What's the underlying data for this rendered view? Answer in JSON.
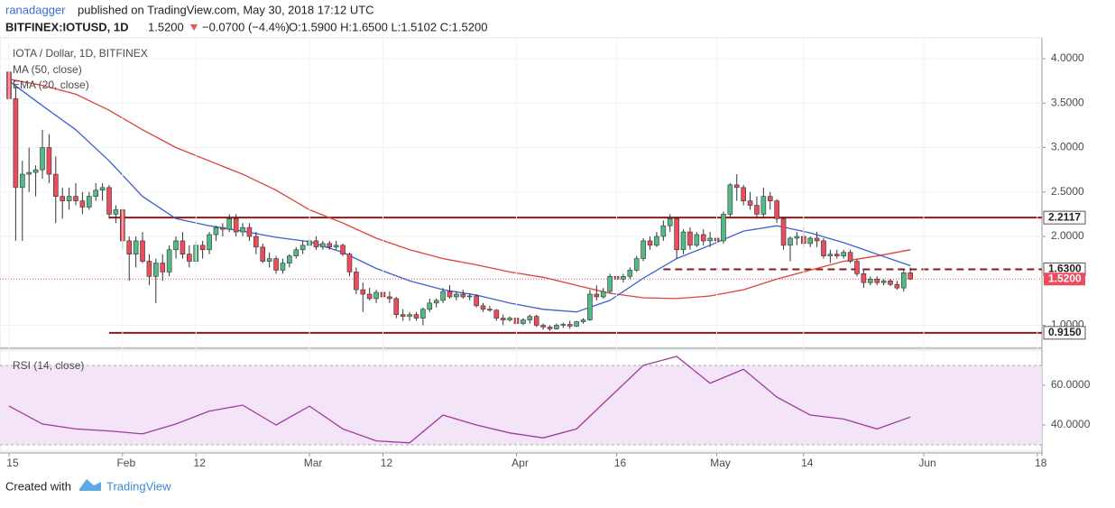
{
  "header": {
    "publisher": "ranadagger",
    "published": "published on TradingView.com, May 30, 2018 17:12 UTC",
    "symbol": "BITFINEX:IOTUSD, 1D",
    "last": "1.5200",
    "change": "−0.0700 (−4.4%)",
    "ohlc": "O:1.5900 H:1.6500 L:1.5102 C:1.5200"
  },
  "footer": {
    "created": "Created with",
    "brand": "TradingView"
  },
  "chart_data": [
    {
      "type": "candlestick",
      "title": "IOTA / Dollar, 1D, BITFINEX",
      "up_color": "#53b987",
      "down_color": "#eb4d5c",
      "xlim": [
        -1.35,
        154.7
      ],
      "ylim": [
        0.751,
        4.234
      ],
      "xticks": [
        {
          "value": 0,
          "label": "15"
        },
        {
          "value": 17,
          "label": "Feb"
        },
        {
          "value": 28,
          "label": "12"
        },
        {
          "value": 45,
          "label": "Mar"
        },
        {
          "value": 56,
          "label": "12"
        },
        {
          "value": 76,
          "label": "Apr"
        },
        {
          "value": 91,
          "label": "16"
        },
        {
          "value": 106,
          "label": "May"
        },
        {
          "value": 119,
          "label": "14"
        },
        {
          "value": 137,
          "label": "Jun"
        },
        {
          "value": 154,
          "label": "18"
        }
      ],
      "yticks": [
        {
          "value": 4,
          "label": "4.0000"
        },
        {
          "value": 3.5,
          "label": "3.5000"
        },
        {
          "value": 3,
          "label": "3.0000"
        },
        {
          "value": 2.5,
          "label": "2.5000"
        },
        {
          "value": 2,
          "label": "2.0000"
        },
        {
          "value": 1,
          "label": "1.0000"
        }
      ],
      "levels": [
        {
          "value": 2.2117,
          "label": "2.2117"
        },
        {
          "value": 1.63,
          "label": "1.6300"
        },
        {
          "value": 0.915,
          "label": "0.9150"
        }
      ],
      "last_price": {
        "value": 1.52,
        "label": "1.5200"
      },
      "candles": [
        [
          3.85,
          3.95,
          3.4,
          3.55
        ],
        [
          3.55,
          3.7,
          1.95,
          2.55
        ],
        [
          2.55,
          2.85,
          1.95,
          2.7
        ],
        [
          2.7,
          3,
          2.5,
          2.72
        ],
        [
          2.72,
          2.8,
          2.45,
          2.75
        ],
        [
          2.75,
          3.2,
          2.65,
          3
        ],
        [
          3,
          3.15,
          2.6,
          2.7
        ],
        [
          2.7,
          2.9,
          2.15,
          2.45
        ],
        [
          2.45,
          2.55,
          2.2,
          2.4
        ],
        [
          2.4,
          2.55,
          2.3,
          2.45
        ],
        [
          2.45,
          2.6,
          2.35,
          2.4
        ],
        [
          2.4,
          2.5,
          2.25,
          2.33
        ],
        [
          2.33,
          2.5,
          2.3,
          2.45
        ],
        [
          2.45,
          2.6,
          2.4,
          2.52
        ],
        [
          2.52,
          2.6,
          2.4,
          2.55
        ],
        [
          2.55,
          2.58,
          2.2,
          2.25
        ],
        [
          2.25,
          2.35,
          2.15,
          2.3
        ],
        [
          2.3,
          2.32,
          1.85,
          1.95
        ],
        [
          1.95,
          2,
          1.5,
          1.8
        ],
        [
          1.8,
          2,
          1.65,
          1.95
        ],
        [
          1.95,
          2.05,
          1.7,
          1.72
        ],
        [
          1.72,
          1.8,
          1.45,
          1.55
        ],
        [
          1.55,
          1.75,
          1.25,
          1.7
        ],
        [
          1.7,
          1.8,
          1.5,
          1.6
        ],
        [
          1.6,
          1.9,
          1.55,
          1.85
        ],
        [
          1.85,
          2,
          1.75,
          1.95
        ],
        [
          1.95,
          2.05,
          1.75,
          1.8
        ],
        [
          1.8,
          1.9,
          1.65,
          1.72
        ],
        [
          1.72,
          1.95,
          1.7,
          1.9
        ],
        [
          1.9,
          1.95,
          1.75,
          1.85
        ],
        [
          1.85,
          2.05,
          1.8,
          2.02
        ],
        [
          2.02,
          2.12,
          1.95,
          2.1
        ],
        [
          2.1,
          2.15,
          2,
          2.08
        ],
        [
          2.08,
          2.25,
          2.05,
          2.2
        ],
        [
          2.2,
          2.25,
          2,
          2.05
        ],
        [
          2.05,
          2.15,
          2,
          2.1
        ],
        [
          2.1,
          2.15,
          1.95,
          2
        ],
        [
          2,
          2.05,
          1.8,
          1.88
        ],
        [
          1.88,
          1.92,
          1.7,
          1.72
        ],
        [
          1.72,
          1.82,
          1.65,
          1.75
        ],
        [
          1.75,
          1.78,
          1.58,
          1.62
        ],
        [
          1.62,
          1.75,
          1.58,
          1.7
        ],
        [
          1.7,
          1.8,
          1.65,
          1.78
        ],
        [
          1.78,
          1.88,
          1.75,
          1.85
        ],
        [
          1.85,
          1.95,
          1.8,
          1.9
        ],
        [
          1.9,
          2,
          1.85,
          1.95
        ],
        [
          1.95,
          2,
          1.85,
          1.88
        ],
        [
          1.88,
          1.95,
          1.85,
          1.92
        ],
        [
          1.92,
          1.95,
          1.85,
          1.88
        ],
        [
          1.88,
          1.95,
          1.85,
          1.9
        ],
        [
          1.9,
          1.92,
          1.78,
          1.8
        ],
        [
          1.8,
          1.82,
          1.55,
          1.6
        ],
        [
          1.6,
          1.65,
          1.35,
          1.4
        ],
        [
          1.4,
          1.48,
          1.15,
          1.35
        ],
        [
          1.35,
          1.42,
          1.28,
          1.3
        ],
        [
          1.3,
          1.4,
          1.25,
          1.37
        ],
        [
          1.37,
          1.4,
          1.28,
          1.32
        ],
        [
          1.32,
          1.38,
          1.25,
          1.3
        ],
        [
          1.3,
          1.32,
          1.08,
          1.12
        ],
        [
          1.12,
          1.18,
          1.05,
          1.1
        ],
        [
          1.1,
          1.15,
          1.05,
          1.12
        ],
        [
          1.12,
          1.15,
          1.05,
          1.08
        ],
        [
          1.08,
          1.2,
          1,
          1.18
        ],
        [
          1.18,
          1.3,
          1.15,
          1.25
        ],
        [
          1.25,
          1.3,
          1.2,
          1.28
        ],
        [
          1.28,
          1.42,
          1.25,
          1.38
        ],
        [
          1.38,
          1.45,
          1.3,
          1.32
        ],
        [
          1.32,
          1.38,
          1.28,
          1.35
        ],
        [
          1.35,
          1.4,
          1.3,
          1.32
        ],
        [
          1.32,
          1.36,
          1.28,
          1.33
        ],
        [
          1.33,
          1.35,
          1.2,
          1.22
        ],
        [
          1.22,
          1.25,
          1.15,
          1.18
        ],
        [
          1.18,
          1.22,
          1.15,
          1.17
        ],
        [
          1.17,
          1.18,
          1.05,
          1.08
        ],
        [
          1.08,
          1.12,
          1,
          1.06
        ],
        [
          1.06,
          1.1,
          1.04,
          1.08
        ],
        [
          1.08,
          1.1,
          0.98,
          1.02
        ],
        [
          1.02,
          1.08,
          1,
          1.06
        ],
        [
          1.06,
          1.12,
          1.02,
          1.1
        ],
        [
          1.1,
          1.12,
          0.98,
          1
        ],
        [
          1,
          1.02,
          0.95,
          0.98
        ],
        [
          0.98,
          1,
          0.94,
          0.96
        ],
        [
          0.96,
          1.02,
          0.95,
          1
        ],
        [
          1,
          1.03,
          0.97,
          1.01
        ],
        [
          1.01,
          1.05,
          0.96,
          0.99
        ],
        [
          0.99,
          1.05,
          0.98,
          1.04
        ],
        [
          1.04,
          1.08,
          1.02,
          1.06
        ],
        [
          1.06,
          1.4,
          1.05,
          1.35
        ],
        [
          1.35,
          1.45,
          1.28,
          1.32
        ],
        [
          1.32,
          1.42,
          1.3,
          1.38
        ],
        [
          1.38,
          1.58,
          1.36,
          1.55
        ],
        [
          1.55,
          1.62,
          1.45,
          1.52
        ],
        [
          1.52,
          1.58,
          1.48,
          1.55
        ],
        [
          1.55,
          1.65,
          1.52,
          1.62
        ],
        [
          1.62,
          1.78,
          1.6,
          1.75
        ],
        [
          1.75,
          1.98,
          1.72,
          1.95
        ],
        [
          1.95,
          2,
          1.85,
          1.9
        ],
        [
          1.9,
          2.05,
          1.88,
          2
        ],
        [
          2,
          2.18,
          1.95,
          2.12
        ],
        [
          2.12,
          2.25,
          2.05,
          2.2
        ],
        [
          2.2,
          2.22,
          1.75,
          1.85
        ],
        [
          1.85,
          2.08,
          1.8,
          2.05
        ],
        [
          2.05,
          2.1,
          1.85,
          1.9
        ],
        [
          1.9,
          2.05,
          1.88,
          2.02
        ],
        [
          2.02,
          2.08,
          1.9,
          1.95
        ],
        [
          1.95,
          2.05,
          1.88,
          1.98
        ],
        [
          1.98,
          2,
          1.88,
          1.95
        ],
        [
          1.95,
          2.28,
          1.92,
          2.25
        ],
        [
          2.25,
          2.6,
          2.22,
          2.58
        ],
        [
          2.58,
          2.7,
          2.4,
          2.55
        ],
        [
          2.55,
          2.58,
          2.35,
          2.4
        ],
        [
          2.4,
          2.5,
          2.3,
          2.35
        ],
        [
          2.35,
          2.45,
          2.2,
          2.25
        ],
        [
          2.25,
          2.55,
          2.2,
          2.45
        ],
        [
          2.45,
          2.5,
          2.3,
          2.4
        ],
        [
          2.4,
          2.42,
          2.15,
          2.2
        ],
        [
          2.2,
          2.22,
          1.85,
          1.9
        ],
        [
          1.9,
          2,
          1.72,
          1.98
        ],
        [
          1.98,
          2.05,
          1.9,
          2
        ],
        [
          2,
          2.1,
          1.88,
          1.92
        ],
        [
          1.92,
          2,
          1.88,
          1.98
        ],
        [
          1.98,
          2.05,
          1.88,
          1.95
        ],
        [
          1.95,
          1.98,
          1.75,
          1.78
        ],
        [
          1.78,
          1.85,
          1.7,
          1.8
        ],
        [
          1.8,
          1.85,
          1.75,
          1.78
        ],
        [
          1.78,
          1.85,
          1.75,
          1.82
        ],
        [
          1.82,
          1.85,
          1.7,
          1.72
        ],
        [
          1.72,
          1.75,
          1.55,
          1.58
        ],
        [
          1.58,
          1.62,
          1.42,
          1.48
        ],
        [
          1.48,
          1.55,
          1.45,
          1.52
        ],
        [
          1.52,
          1.55,
          1.45,
          1.48
        ],
        [
          1.48,
          1.52,
          1.45,
          1.5
        ],
        [
          1.5,
          1.52,
          1.44,
          1.46
        ],
        [
          1.46,
          1.5,
          1.4,
          1.42
        ],
        [
          1.42,
          1.62,
          1.38,
          1.59
        ],
        [
          1.59,
          1.65,
          1.5102,
          1.52
        ]
      ],
      "series": [
        {
          "name": "MA (50, close)",
          "color": "#e0403a",
          "x": [
            0,
            5,
            10,
            15,
            20,
            25,
            30,
            35,
            40,
            45,
            50,
            55,
            60,
            65,
            70,
            75,
            80,
            85,
            90,
            95,
            100,
            105,
            110,
            115,
            120,
            125,
            130,
            135
          ],
          "values": [
            3.77,
            3.7,
            3.6,
            3.42,
            3.2,
            3,
            2.85,
            2.7,
            2.52,
            2.3,
            2.15,
            1.98,
            1.85,
            1.75,
            1.68,
            1.6,
            1.54,
            1.45,
            1.36,
            1.31,
            1.3,
            1.33,
            1.4,
            1.52,
            1.62,
            1.72,
            1.78,
            1.85
          ]
        },
        {
          "name": "EMA (20, close)",
          "color": "#3d5fd6",
          "x": [
            0,
            5,
            10,
            15,
            20,
            25,
            30,
            35,
            40,
            45,
            50,
            55,
            60,
            65,
            70,
            75,
            80,
            85,
            90,
            95,
            100,
            105,
            110,
            115,
            120,
            125,
            130,
            135
          ],
          "values": [
            3.75,
            3.47,
            3.2,
            2.85,
            2.45,
            2.2,
            2.12,
            2.06,
            1.99,
            1.94,
            1.82,
            1.64,
            1.5,
            1.4,
            1.34,
            1.25,
            1.18,
            1.15,
            1.28,
            1.53,
            1.75,
            1.9,
            2.06,
            2.12,
            2.04,
            1.93,
            1.8,
            1.67
          ]
        }
      ]
    },
    {
      "type": "line",
      "title": "RSI (14, close)",
      "xlim": [
        -1.35,
        154.7
      ],
      "ylim": [
        26.8,
        77.7
      ],
      "yticks": [
        {
          "value": 60,
          "label": "60.0000"
        },
        {
          "value": 40,
          "label": "40.0000"
        }
      ],
      "band": [
        30,
        70
      ],
      "band_color": "#f3e4f8",
      "series": [
        {
          "name": "RSI",
          "color": "#a03aa0",
          "x": [
            0,
            5,
            10,
            15,
            20,
            25,
            30,
            35,
            40,
            45,
            50,
            55,
            60,
            65,
            70,
            75,
            80,
            85,
            90,
            95,
            100,
            105,
            110,
            115,
            120,
            125,
            130,
            135
          ],
          "values": [
            49.5,
            40.5,
            38,
            37,
            35.5,
            40.5,
            47,
            50,
            40,
            49.5,
            38,
            32,
            31,
            45,
            40,
            36,
            33.5,
            38,
            54,
            70,
            74.5,
            61,
            68,
            54,
            45,
            43,
            38,
            44
          ]
        }
      ]
    }
  ]
}
